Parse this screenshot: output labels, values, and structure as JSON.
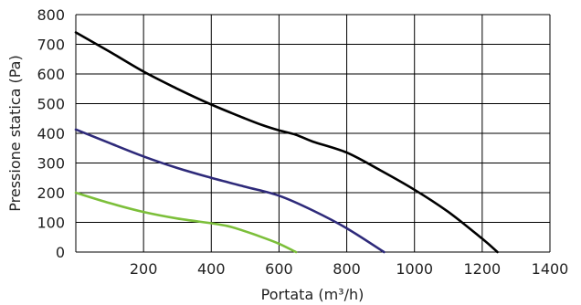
{
  "chart_data": {
    "type": "line",
    "title": "",
    "xlabel": "Portata (m³/h)",
    "ylabel": "Pressione statica (Pa)",
    "xlim": [
      0,
      1400
    ],
    "ylim": [
      0,
      800
    ],
    "x_ticks": [
      200,
      400,
      600,
      800,
      1000,
      1200,
      1400
    ],
    "y_ticks": [
      0,
      100,
      200,
      300,
      400,
      500,
      600,
      700,
      800
    ],
    "grid": true,
    "legend": "none",
    "series": [
      {
        "color": "#000000",
        "points": [
          [
            0,
            740
          ],
          [
            100,
            675
          ],
          [
            200,
            608
          ],
          [
            300,
            550
          ],
          [
            400,
            497
          ],
          [
            500,
            450
          ],
          [
            550,
            428
          ],
          [
            600,
            410
          ],
          [
            650,
            395
          ],
          [
            700,
            372
          ],
          [
            800,
            335
          ],
          [
            900,
            275
          ],
          [
            1000,
            210
          ],
          [
            1100,
            135
          ],
          [
            1200,
            45
          ],
          [
            1245,
            0
          ]
        ]
      },
      {
        "color": "#2e2a7a",
        "points": [
          [
            0,
            413
          ],
          [
            100,
            367
          ],
          [
            200,
            322
          ],
          [
            300,
            283
          ],
          [
            400,
            250
          ],
          [
            500,
            220
          ],
          [
            600,
            190
          ],
          [
            700,
            140
          ],
          [
            800,
            80
          ],
          [
            910,
            0
          ]
        ]
      },
      {
        "color": "#7cbf3a",
        "points": [
          [
            0,
            200
          ],
          [
            100,
            165
          ],
          [
            200,
            135
          ],
          [
            300,
            113
          ],
          [
            400,
            97
          ],
          [
            450,
            87
          ],
          [
            500,
            70
          ],
          [
            550,
            50
          ],
          [
            600,
            28
          ],
          [
            650,
            0
          ]
        ]
      }
    ]
  }
}
